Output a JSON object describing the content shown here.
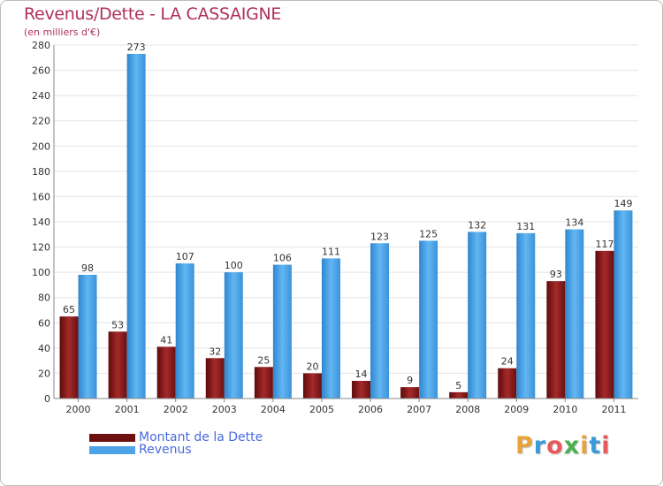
{
  "chart_data": {
    "type": "bar",
    "title": "Revenus/Dette - LA CASSAIGNE",
    "subtitle": "(en milliers d'€)",
    "xlabel": "",
    "ylabel": "",
    "ylim": [
      0,
      280
    ],
    "yticks": [
      0,
      20,
      40,
      60,
      80,
      100,
      120,
      140,
      160,
      180,
      200,
      220,
      240,
      260,
      280
    ],
    "grid": true,
    "categories": [
      "2000",
      "2001",
      "2002",
      "2003",
      "2004",
      "2005",
      "2006",
      "2007",
      "2008",
      "2009",
      "2010",
      "2011"
    ],
    "series": [
      {
        "name": "Montant de la Dette",
        "color": "#8b1a1a",
        "values": [
          65,
          53,
          41,
          32,
          25,
          20,
          14,
          9,
          5,
          24,
          93,
          117
        ]
      },
      {
        "name": "Revenus",
        "color": "#4da3e8",
        "values": [
          98,
          273,
          107,
          100,
          106,
          111,
          123,
          125,
          132,
          131,
          134,
          149
        ]
      }
    ],
    "legend": "bottom-left"
  },
  "logo": {
    "letters": [
      "P",
      "r",
      "o",
      "x",
      "i",
      "t",
      "i"
    ],
    "colors": [
      "#e8a33a",
      "#3a9ad9",
      "#e85a5a",
      "#4caf50",
      "#e8a33a",
      "#3a9ad9",
      "#e85a5a"
    ]
  }
}
